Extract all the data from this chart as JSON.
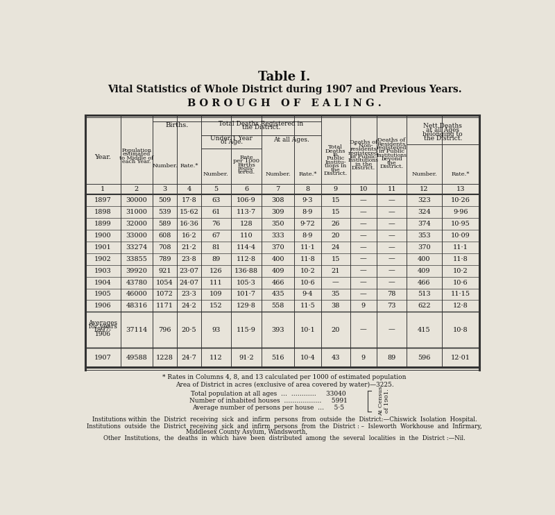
{
  "title1": "Table I.",
  "title2": "Vital Statistics of Whole District during 1907 and Previous Years.",
  "title3": "BOROUGH OF EALING.",
  "bg_color": "#e8e4da",
  "rows": [
    [
      "1897",
      "30000",
      "509",
      "17·8",
      "63",
      "106·9",
      "308",
      "9·3",
      "15",
      "—",
      "—",
      "323",
      "10·26"
    ],
    [
      "1898",
      "31000",
      "539",
      "15·62",
      "61",
      "113·7",
      "309",
      "8·9",
      "15",
      "—",
      "—",
      "324",
      "9·96"
    ],
    [
      "1899",
      "32000",
      "589",
      "16·36",
      "76",
      "128",
      "350",
      "9·72",
      "26",
      "—",
      "—",
      "374",
      "10·95"
    ],
    [
      "1900",
      "33000",
      "608",
      "16·2",
      "67",
      "110",
      "333",
      "8·9",
      "20",
      "—",
      "—",
      "353",
      "10·09"
    ],
    [
      "1901",
      "33274",
      "708",
      "21·2",
      "81",
      "114·4",
      "370",
      "11·1",
      "24",
      "—",
      "—",
      "370",
      "11·1"
    ],
    [
      "1902",
      "33855",
      "789",
      "23·8",
      "89",
      "112·8",
      "400",
      "11·8",
      "15",
      "—",
      "—",
      "400",
      "11·8"
    ],
    [
      "1903",
      "39920",
      "921",
      "23·07",
      "126",
      "136·88",
      "409",
      "10·2",
      "21",
      "—",
      "—",
      "409",
      "10·2"
    ],
    [
      "1904",
      "43780",
      "1054",
      "24·07",
      "111",
      "105·3",
      "466",
      "10·6",
      "—",
      "—",
      "—",
      "466",
      "10·6"
    ],
    [
      "1905",
      "46000",
      "1072",
      "23·3",
      "109",
      "101·7",
      "435",
      "9·4",
      "35",
      "—",
      "78",
      "513",
      "11·15"
    ],
    [
      "1906",
      "48316",
      "1171",
      "24·2",
      "152",
      "129·8",
      "558",
      "11·5",
      "38",
      "9",
      "73",
      "622",
      "12·8"
    ]
  ],
  "avg_row": [
    "",
    "37114",
    "796",
    "20·5",
    "93",
    "115·9",
    "393",
    "10·1",
    "20",
    "—",
    "—",
    "415",
    "10·8"
  ],
  "row_1907": [
    "1907",
    "49588",
    "1228",
    "24·7",
    "112",
    "91·2",
    "516",
    "10·4",
    "43",
    "9",
    "89",
    "596",
    "12·01"
  ],
  "col_numbers": [
    "1",
    "2",
    "3",
    "4",
    "5",
    "6",
    "7",
    "8",
    "9",
    "10",
    "11",
    "12",
    "13"
  ],
  "footnote1": "* Rates in Columns 4, 8, and 13 calculated per 1000 of estimated population",
  "footnote2": "Area of District in acres (exclusive of area covered by water)—3225.",
  "footnote3": "Total population at all ages  …  …………     33040",
  "footnote4": "Number of inhabited houses  ………………     5991",
  "footnote5": "Average number of persons per house  …     5·5",
  "footnote6_line1": "At Census",
  "footnote6_line2": "of 1901.",
  "footnote7": "Institutions within  the  District  receiving  sick  and  infirm  persons  from  outside  the  District:—Chiswick  Isolation  Hospital.",
  "footnote8": "Institutions  outside  the  District  receiving  sick  and  infirm  persons  from  the  District : –  Isleworth  Workhouse  and  Infirmary,",
  "footnote9": "Middlesex County Asylum, Wandsworth,",
  "footnote10": "Other  Institutions,  the  deaths  in  which  have  been  distributed  among  the  several  localities  in  the  District :—Nil."
}
